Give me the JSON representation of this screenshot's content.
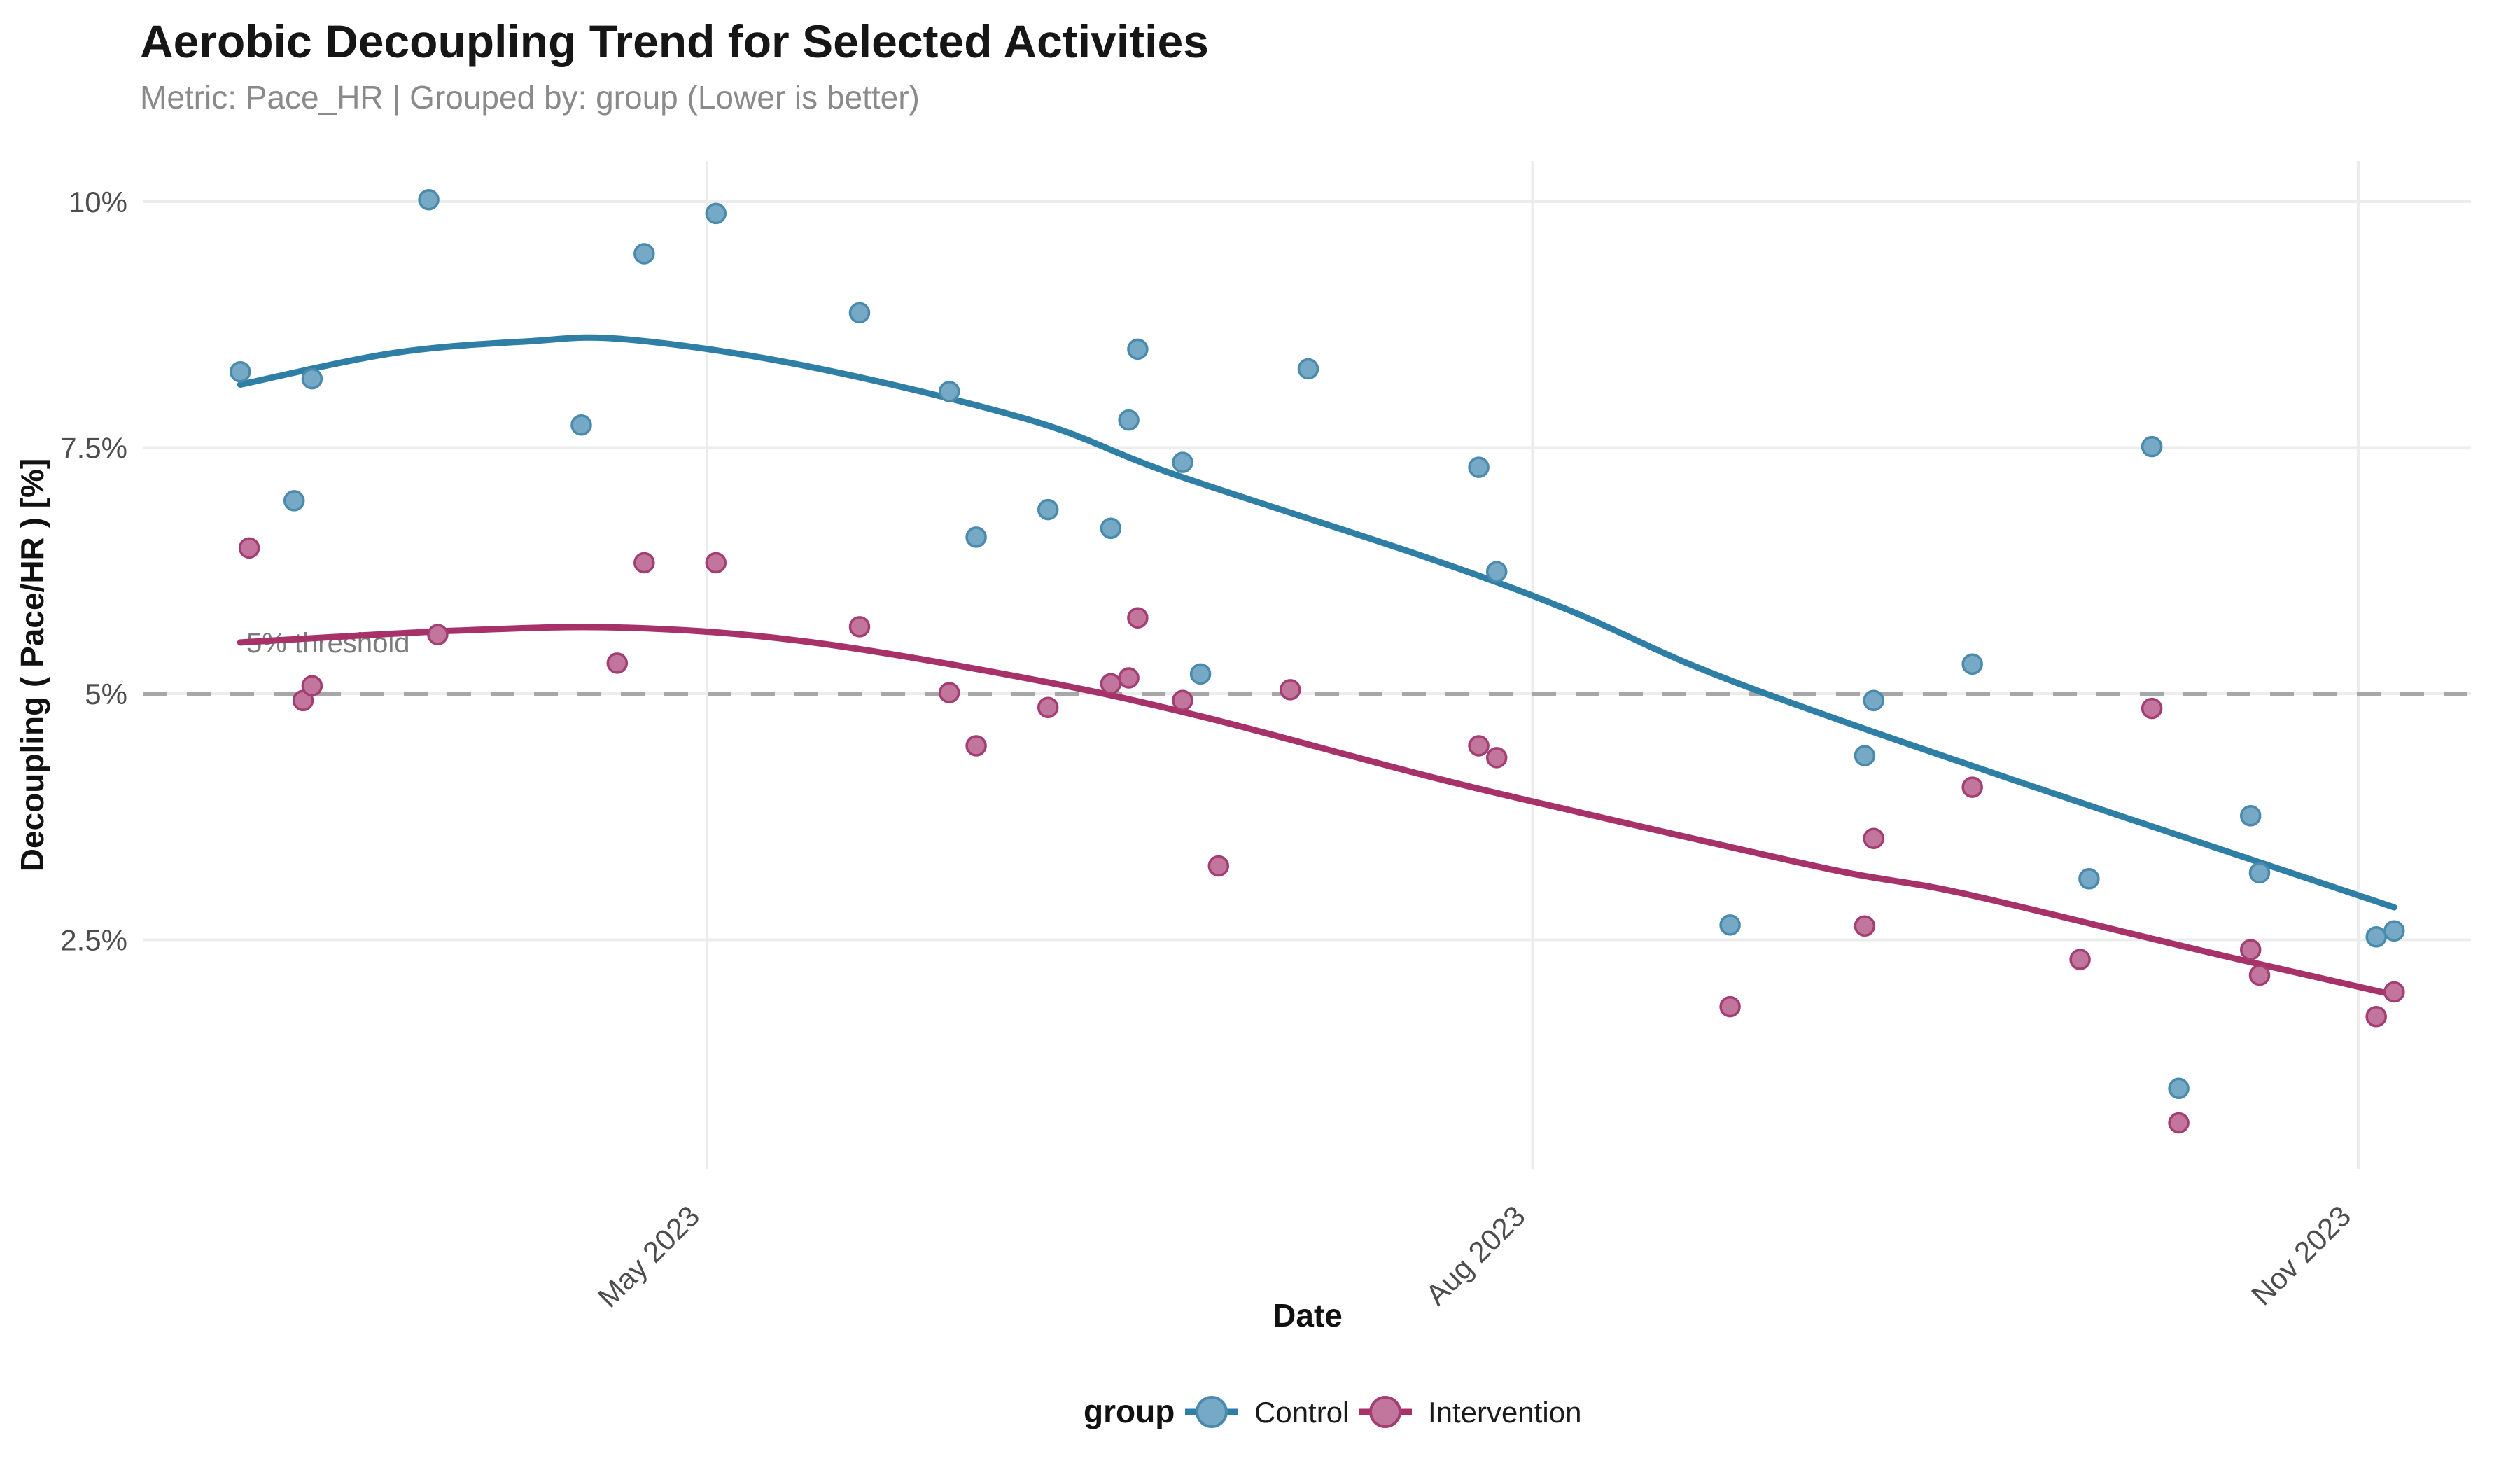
{
  "title": "Aerobic Decoupling Trend for Selected Activities",
  "subtitle": "Metric: Pace_HR | Grouped by: group (Lower is better)",
  "annotation": {
    "threshold_label": "5% threshold"
  },
  "legend": {
    "title": "group",
    "items": [
      {
        "label": "Control"
      },
      {
        "label": "Intervention"
      }
    ]
  },
  "colors": {
    "control_line": "#2e7ea6",
    "control_fill": "#76a9c5",
    "control_stroke": "#4a8bad",
    "intervention_line": "#a73169",
    "intervention_fill": "#c2769e",
    "intervention_stroke": "#a43e72",
    "grid": "#ececec",
    "threshold_line": "#a7a7a7",
    "tick_text": "#4d4d4d",
    "title_text": "#161616",
    "subtitle_text": "#8a8a8a"
  },
  "chart_data": {
    "type": "scatter",
    "title": "Aerobic Decoupling Trend for Selected Activities",
    "subtitle": "Metric: Pace_HR | Grouped by: group (Lower is better)",
    "xlabel": "Date",
    "ylabel": "Decoupling ( Pace/HR ) [%]",
    "threshold_label": "5% threshold",
    "threshold_pct": 5,
    "grid": true,
    "legend_position": "bottom",
    "legend_title": "group",
    "x_ticks": [
      {
        "label": "May 2023",
        "date": "2023-05-01"
      },
      {
        "label": "Aug 2023",
        "date": "2023-08-01"
      },
      {
        "label": "Nov 2023",
        "date": "2023-11-01"
      }
    ],
    "y_ticks": [
      {
        "label": "2.5%",
        "value": 2.5
      },
      {
        "label": "5%",
        "value": 5
      },
      {
        "label": "7.5%",
        "value": 7.5
      },
      {
        "label": "10%",
        "value": 10
      }
    ],
    "x_range_dates": [
      "2023-02-27",
      "2023-11-13"
    ],
    "ylim": [
      0.1,
      10.4
    ],
    "series": [
      {
        "name": "Control",
        "points": [
          {
            "date": "2023-03-10",
            "value": 8.27
          },
          {
            "date": "2023-03-16",
            "value": 6.96
          },
          {
            "date": "2023-03-18",
            "value": 8.2
          },
          {
            "date": "2023-03-31",
            "value": 10.02
          },
          {
            "date": "2023-04-17",
            "value": 7.73
          },
          {
            "date": "2023-04-24",
            "value": 9.47
          },
          {
            "date": "2023-05-02",
            "value": 9.88
          },
          {
            "date": "2023-05-18",
            "value": 8.87
          },
          {
            "date": "2023-05-28",
            "value": 8.07
          },
          {
            "date": "2023-05-31",
            "value": 6.59
          },
          {
            "date": "2023-06-08",
            "value": 6.87
          },
          {
            "date": "2023-06-15",
            "value": 6.68
          },
          {
            "date": "2023-06-17",
            "value": 7.78
          },
          {
            "date": "2023-06-18",
            "value": 8.5
          },
          {
            "date": "2023-06-23",
            "value": 7.35
          },
          {
            "date": "2023-06-25",
            "value": 5.2
          },
          {
            "date": "2023-07-07",
            "value": 8.3
          },
          {
            "date": "2023-07-26",
            "value": 7.3
          },
          {
            "date": "2023-07-28",
            "value": 6.24
          },
          {
            "date": "2023-08-23",
            "value": 2.65
          },
          {
            "date": "2023-09-07",
            "value": 4.37
          },
          {
            "date": "2023-09-08",
            "value": 4.93
          },
          {
            "date": "2023-09-19",
            "value": 5.3
          },
          {
            "date": "2023-10-02",
            "value": 3.12
          },
          {
            "date": "2023-10-09",
            "value": 7.51
          },
          {
            "date": "2023-10-12",
            "value": 0.99
          },
          {
            "date": "2023-10-20",
            "value": 3.76
          },
          {
            "date": "2023-10-21",
            "value": 3.18
          },
          {
            "date": "2023-11-03",
            "value": 2.53
          },
          {
            "date": "2023-11-05",
            "value": 2.59
          }
        ],
        "trend": [
          [
            "2023-03-10",
            8.14
          ],
          [
            "2023-03-27",
            8.46
          ],
          [
            "2023-04-11",
            8.58
          ],
          [
            "2023-04-22",
            8.6
          ],
          [
            "2023-05-12",
            8.33
          ],
          [
            "2023-06-06",
            7.78
          ],
          [
            "2023-06-22",
            7.23
          ],
          [
            "2023-07-20",
            6.39
          ],
          [
            "2023-08-05",
            5.85
          ],
          [
            "2023-08-19",
            5.28
          ],
          [
            "2023-09-03",
            4.77
          ],
          [
            "2023-09-25",
            4.08
          ],
          [
            "2023-10-15",
            3.47
          ],
          [
            "2023-11-05",
            2.83
          ]
        ]
      },
      {
        "name": "Intervention",
        "points": [
          {
            "date": "2023-03-11",
            "value": 6.48
          },
          {
            "date": "2023-03-17",
            "value": 4.93
          },
          {
            "date": "2023-03-18",
            "value": 5.08
          },
          {
            "date": "2023-04-01",
            "value": 5.6
          },
          {
            "date": "2023-04-21",
            "value": 5.31
          },
          {
            "date": "2023-04-24",
            "value": 6.33
          },
          {
            "date": "2023-05-02",
            "value": 6.33
          },
          {
            "date": "2023-05-18",
            "value": 5.68
          },
          {
            "date": "2023-05-28",
            "value": 5.01
          },
          {
            "date": "2023-05-31",
            "value": 4.47
          },
          {
            "date": "2023-06-08",
            "value": 4.86
          },
          {
            "date": "2023-06-15",
            "value": 5.1
          },
          {
            "date": "2023-06-17",
            "value": 5.16
          },
          {
            "date": "2023-06-18",
            "value": 5.77
          },
          {
            "date": "2023-06-23",
            "value": 4.93
          },
          {
            "date": "2023-06-27",
            "value": 3.25
          },
          {
            "date": "2023-07-05",
            "value": 5.04
          },
          {
            "date": "2023-07-26",
            "value": 4.47
          },
          {
            "date": "2023-07-28",
            "value": 4.35
          },
          {
            "date": "2023-08-23",
            "value": 1.82
          },
          {
            "date": "2023-09-07",
            "value": 2.64
          },
          {
            "date": "2023-09-08",
            "value": 3.53
          },
          {
            "date": "2023-09-19",
            "value": 4.05
          },
          {
            "date": "2023-10-01",
            "value": 2.3
          },
          {
            "date": "2023-10-09",
            "value": 4.85
          },
          {
            "date": "2023-10-12",
            "value": 0.64
          },
          {
            "date": "2023-10-20",
            "value": 2.4
          },
          {
            "date": "2023-10-21",
            "value": 2.14
          },
          {
            "date": "2023-11-03",
            "value": 1.72
          },
          {
            "date": "2023-11-05",
            "value": 1.97
          }
        ],
        "trend": [
          [
            "2023-03-10",
            5.52
          ],
          [
            "2023-04-03",
            5.64
          ],
          [
            "2023-04-22",
            5.67
          ],
          [
            "2023-05-12",
            5.53
          ],
          [
            "2023-06-06",
            5.15
          ],
          [
            "2023-06-25",
            4.77
          ],
          [
            "2023-07-20",
            4.17
          ],
          [
            "2023-08-06",
            3.8
          ],
          [
            "2023-09-03",
            3.22
          ],
          [
            "2023-09-18",
            2.97
          ],
          [
            "2023-10-15",
            2.38
          ],
          [
            "2023-11-05",
            1.94
          ]
        ]
      }
    ]
  }
}
